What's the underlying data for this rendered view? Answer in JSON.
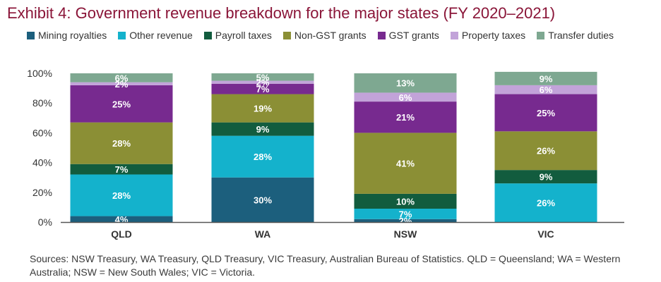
{
  "title": "Exhibit 4: Government revenue breakdown for the major states (FY 2020–2021)",
  "sources": "Sources: NSW Treasury, WA Treasury, QLD Treasury, VIC Treasury, Australian Bureau of Statistics. QLD = Queensland; WA = Western Australia; NSW = New South Wales; VIC = Victoria.",
  "colors": {
    "Mining royalties": "#1c5f7d",
    "Other revenue": "#14b2cc",
    "Payroll taxes": "#125c3e",
    "Non-GST grants": "#8b8f35",
    "GST grants": "#772a8f",
    "Property taxes": "#c2a3d9",
    "Transfer duties": "#7ea891"
  },
  "chart_data": {
    "type": "bar",
    "stacked": true,
    "categories": [
      "QLD",
      "WA",
      "NSW",
      "VIC"
    ],
    "ylim": [
      0,
      100
    ],
    "yticks": [
      "0%",
      "20%",
      "40%",
      "60%",
      "80%",
      "100%"
    ],
    "legend_position": "top",
    "series": [
      {
        "name": "Mining royalties",
        "values": [
          4,
          30,
          2,
          0
        ],
        "labels": [
          "4%",
          "30%",
          "2%",
          ""
        ]
      },
      {
        "name": "Other revenue",
        "values": [
          28,
          28,
          7,
          26
        ],
        "labels": [
          "28%",
          "28%",
          "7%",
          "26%"
        ]
      },
      {
        "name": "Payroll taxes",
        "values": [
          7,
          9,
          10,
          9
        ],
        "labels": [
          "7%",
          "9%",
          "10%",
          "9%"
        ]
      },
      {
        "name": "Non-GST grants",
        "values": [
          28,
          19,
          41,
          26
        ],
        "labels": [
          "28%",
          "19%",
          "41%",
          "26%"
        ]
      },
      {
        "name": "GST grants",
        "values": [
          25,
          7,
          21,
          25
        ],
        "labels": [
          "25%",
          "7%",
          "21%",
          "25%"
        ]
      },
      {
        "name": "Property taxes",
        "values": [
          2,
          2,
          6,
          6
        ],
        "labels": [
          "2%",
          "2%",
          "6%",
          "6%"
        ]
      },
      {
        "name": "Transfer duties",
        "values": [
          6,
          5,
          13,
          9
        ],
        "labels": [
          "6%",
          "5%",
          "13%",
          "9%"
        ]
      }
    ]
  }
}
